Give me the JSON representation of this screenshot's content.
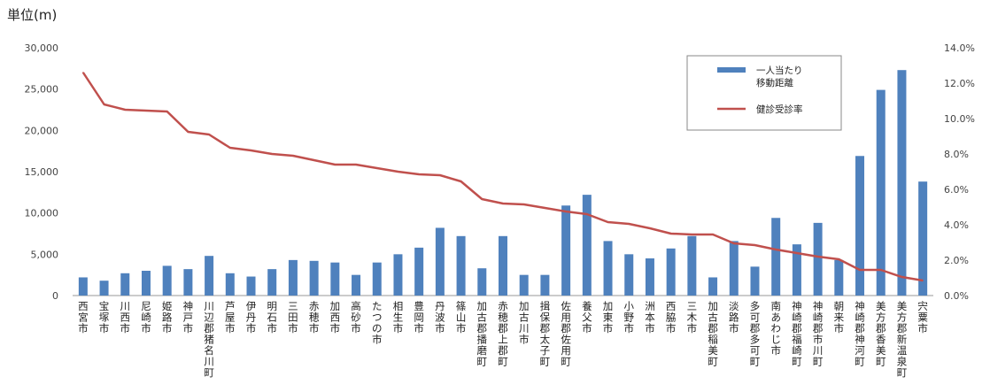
{
  "unit_label": "単位(m)",
  "chart_data": {
    "type": "bar",
    "categories": [
      "西宮市",
      "宝塚市",
      "川西市",
      "尼崎市",
      "姫路市",
      "神戸市",
      "川辺郡猪名川町",
      "芦屋市",
      "伊丹市",
      "明石市",
      "三田市",
      "赤穂市",
      "加西市",
      "高砂市",
      "たつの市",
      "相生市",
      "豊岡市",
      "丹波市",
      "篠山市",
      "加古郡播磨町",
      "赤穂郡上郡町",
      "加古川市",
      "揖保郡太子町",
      "佐用郡佐用町",
      "養父市",
      "加東市",
      "小野市",
      "洲本市",
      "西脇市",
      "三木市",
      "加古郡稲美町",
      "淡路市",
      "多可郡多可町",
      "南あわじ市",
      "神崎郡福崎町",
      "神崎郡市川町",
      "朝来市",
      "神崎郡神河町",
      "美方郡香美町",
      "美方郡新温泉町",
      "宍粟市"
    ],
    "series": [
      {
        "name": "一人当たり移動距離",
        "axis": "left",
        "color": "#4f81bd",
        "values": [
          2200,
          1800,
          2700,
          3000,
          3600,
          3200,
          4800,
          2700,
          2300,
          3200,
          4300,
          4200,
          4000,
          2500,
          4000,
          5000,
          5800,
          8200,
          7200,
          3300,
          7200,
          2500,
          2500,
          10900,
          12200,
          6600,
          5000,
          4500,
          5700,
          7200,
          2200,
          6600,
          3500,
          9400,
          6200,
          8800,
          4300,
          16900,
          24900,
          27300,
          13800
        ]
      },
      {
        "name": "健診受診率",
        "axis": "right",
        "color": "#c0504d",
        "values": [
          12.6,
          10.8,
          10.5,
          10.45,
          10.4,
          9.25,
          9.1,
          8.35,
          8.2,
          8.0,
          7.9,
          7.65,
          7.4,
          7.4,
          7.2,
          7.0,
          6.85,
          6.8,
          6.45,
          5.45,
          5.2,
          5.15,
          4.95,
          4.75,
          4.6,
          4.15,
          4.05,
          3.8,
          3.5,
          3.45,
          3.45,
          2.95,
          2.85,
          2.6,
          2.4,
          2.2,
          2.05,
          1.45,
          1.45,
          1.05,
          0.85
        ]
      }
    ],
    "ylim_left": [
      0,
      30000
    ],
    "ylim_right": [
      0,
      14
    ],
    "left_ticks": [
      "0",
      "5,000",
      "10,000",
      "15,000",
      "20,000",
      "25,000",
      "30,000"
    ],
    "right_ticks": [
      "0.0%",
      "2.0%",
      "4.0%",
      "6.0%",
      "8.0%",
      "10.0%",
      "12.0%",
      "14.0%"
    ],
    "legend": {
      "position": "top-right",
      "bar_label_lines": [
        "一人当たり",
        "移動距離"
      ],
      "line_label": "健診受診率"
    },
    "grid": false
  }
}
